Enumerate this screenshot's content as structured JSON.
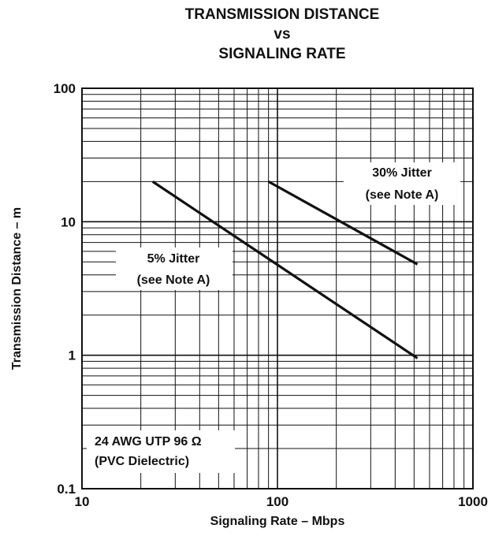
{
  "chart_data": {
    "type": "line",
    "title": [
      "TRANSMISSION DISTANCE",
      "vs",
      "SIGNALING RATE"
    ],
    "xlabel": "Signaling Rate – Mbps",
    "ylabel": "Transmission Distance – m",
    "x_scale": "log",
    "y_scale": "log",
    "xlim": [
      10,
      1000
    ],
    "ylim": [
      0.1,
      100
    ],
    "x_ticks": [
      {
        "value": 10,
        "label": "10"
      },
      {
        "value": 100,
        "label": "100"
      },
      {
        "value": 1000,
        "label": "1000"
      }
    ],
    "y_ticks": [
      {
        "value": 0.1,
        "label": "0.1"
      },
      {
        "value": 1,
        "label": "1"
      },
      {
        "value": 10,
        "label": "10"
      },
      {
        "value": 100,
        "label": "100"
      }
    ],
    "grid": true,
    "series": [
      {
        "name": "5% Jitter (see Note A)",
        "x": [
          23,
          520
        ],
        "y": [
          20,
          0.95
        ]
      },
      {
        "name": "30% Jitter (see Note A)",
        "x": [
          90,
          520
        ],
        "y": [
          20,
          4.8
        ]
      }
    ],
    "annotations": [
      {
        "lines": [
          "5% Jitter",
          "(see Note A)"
        ]
      },
      {
        "lines": [
          "30% Jitter",
          "(see Note A)"
        ]
      },
      {
        "lines": [
          "24 AWG UTP 96 Ω",
          "(PVC Dielectric)"
        ]
      }
    ]
  }
}
